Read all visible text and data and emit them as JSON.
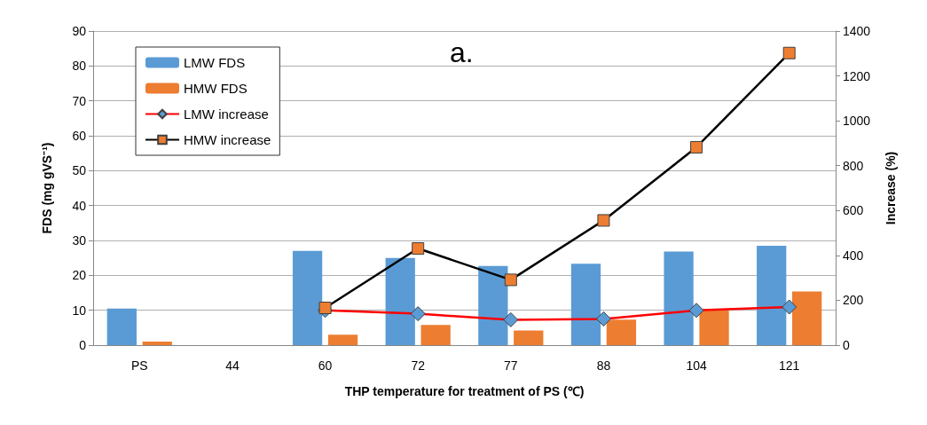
{
  "chart_data": {
    "type": "bar",
    "title": "a.",
    "xlabel": "THP temperature for treatment of PS (℃)",
    "ylabel": "FDS (mg gVS⁻¹)",
    "y2label": "Increase (%)",
    "categories": [
      "PS",
      "44",
      "60",
      "72",
      "77",
      "88",
      "104",
      "121"
    ],
    "series": [
      {
        "name": "LMW FDS",
        "color": "#5b9bd5",
        "values": [
          10.5,
          null,
          27,
          25,
          22.7,
          23.3,
          26.8,
          28.5
        ]
      },
      {
        "name": "HMW FDS",
        "color": "#ed7d31",
        "values": [
          1,
          null,
          3,
          5.8,
          4.2,
          7.3,
          10,
          15.4
        ]
      },
      {
        "name": "LMW increase",
        "type": "line",
        "axis": "y2",
        "color": "#ff0000",
        "marker": "diamond",
        "colors": [
          null,
          null,
          "#5b9bd5",
          "#5b9bd5",
          "#5b9bd5",
          "#5b9bd5",
          "#5b9bd5",
          "#5b9bd5"
        ],
        "values": [
          null,
          null,
          155,
          140,
          113,
          117,
          155,
          170
        ]
      },
      {
        "name": "HMW increase",
        "type": "line",
        "axis": "y2",
        "color": "#000000",
        "marker": "square",
        "colors": [
          null,
          null,
          "#ed7d31",
          "#ed7d31",
          "#ed7d31",
          "#ed7d31",
          "#ed7d31",
          "#ed7d31"
        ],
        "values": [
          null,
          null,
          166,
          431,
          291,
          556,
          882,
          1302
        ]
      }
    ],
    "ylim": [
      0,
      90
    ],
    "yticks": [
      0,
      10,
      20,
      30,
      40,
      50,
      60,
      70,
      80,
      90
    ],
    "y2lim": [
      0,
      1400
    ],
    "y2ticks": [
      0,
      200,
      400,
      600,
      800,
      1000,
      1200,
      1400
    ],
    "grid": "y",
    "legend": "top left"
  }
}
